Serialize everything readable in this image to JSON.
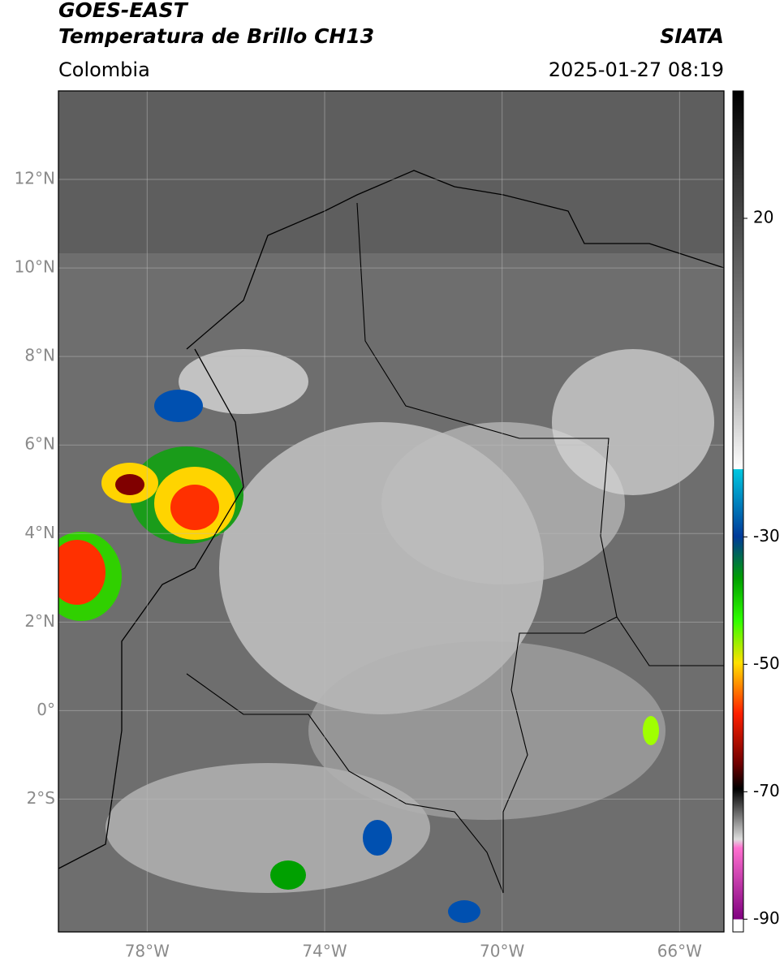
{
  "header": {
    "satellite": "GOES-EAST",
    "product": "Temperatura de Brillo CH13",
    "region": "Colombia",
    "agency": "SIATA",
    "datetime": "2025-01-27 08:19"
  },
  "map": {
    "lon_range": [
      -80,
      -65
    ],
    "lat_range": [
      -5,
      14
    ],
    "lat_ticks": [
      {
        "value": 12,
        "label": "12°N"
      },
      {
        "value": 10,
        "label": "10°N"
      },
      {
        "value": 8,
        "label": "8°N"
      },
      {
        "value": 6,
        "label": "6°N"
      },
      {
        "value": 4,
        "label": "4°N"
      },
      {
        "value": 2,
        "label": "2°N"
      },
      {
        "value": 0,
        "label": "0°"
      },
      {
        "value": -2,
        "label": "2°S"
      }
    ],
    "lon_ticks": [
      {
        "value": -78,
        "label": "78°W"
      },
      {
        "value": -74,
        "label": "74°W"
      },
      {
        "value": -70,
        "label": "70°W"
      },
      {
        "value": -66,
        "label": "66°W"
      }
    ]
  },
  "colorbar": {
    "range": [
      -92,
      40
    ],
    "ticks": [
      20,
      -30,
      -50,
      -70,
      -90
    ]
  }
}
